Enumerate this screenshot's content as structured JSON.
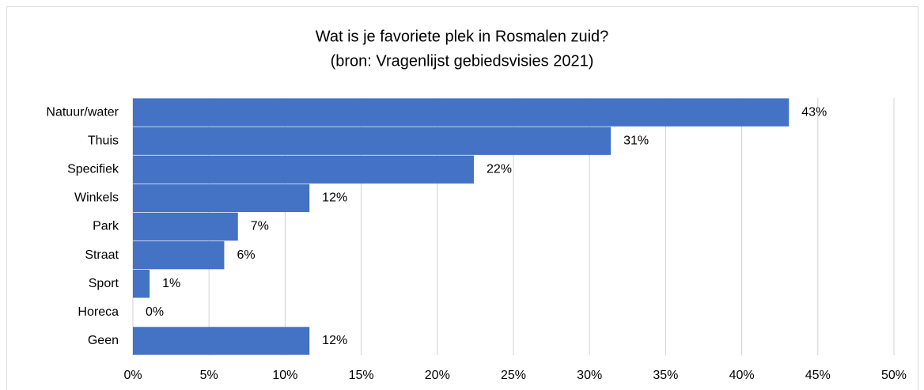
{
  "chart_data": {
    "type": "bar",
    "orientation": "horizontal",
    "title": "Wat is je favoriete plek in Rosmalen zuid?",
    "subtitle": "(bron: Vragenlijst gebiedsvisies 2021)",
    "categories": [
      "Natuur/water",
      "Thuis",
      "Specifiek",
      "Winkels",
      "Park",
      "Straat",
      "Sport",
      "Horeca",
      "Geen"
    ],
    "values": [
      43.1,
      31.4,
      22.4,
      11.6,
      6.9,
      6.0,
      1.1,
      0,
      11.6
    ],
    "value_labels": [
      "43%",
      "31%",
      "22%",
      "12%",
      "7%",
      "6%",
      "1%",
      "0%",
      "12%"
    ],
    "color": "#4472c4",
    "xlim": [
      0,
      50
    ],
    "xticks": [
      {
        "value": 0,
        "label": "0%"
      },
      {
        "value": 5,
        "label": "5%"
      },
      {
        "value": 10,
        "label": "10%"
      },
      {
        "value": 15,
        "label": "15%"
      },
      {
        "value": 20,
        "label": "20%"
      },
      {
        "value": 25,
        "label": "25%"
      },
      {
        "value": 30,
        "label": "30%"
      },
      {
        "value": 35,
        "label": "35%"
      },
      {
        "value": 40,
        "label": "40%"
      },
      {
        "value": 45,
        "label": "45%"
      },
      {
        "value": 50,
        "label": "50%"
      }
    ],
    "grid": true
  }
}
